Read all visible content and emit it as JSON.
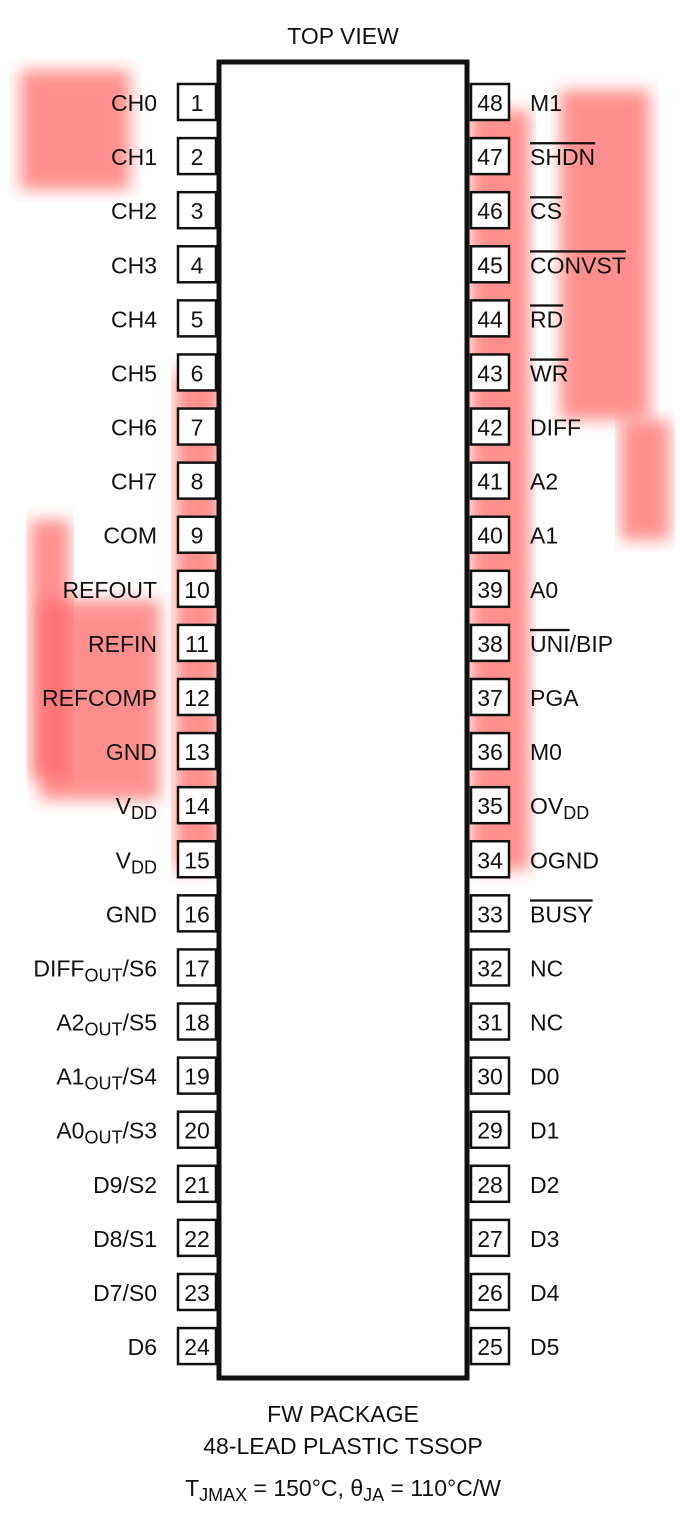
{
  "title": "TOP VIEW",
  "left_pins": [
    {
      "number": 1,
      "name": [
        {
          "text": "CH0"
        }
      ]
    },
    {
      "number": 2,
      "name": [
        {
          "text": "CH1"
        }
      ]
    },
    {
      "number": 3,
      "name": [
        {
          "text": "CH2"
        }
      ]
    },
    {
      "number": 4,
      "name": [
        {
          "text": "CH3"
        }
      ]
    },
    {
      "number": 5,
      "name": [
        {
          "text": "CH4"
        }
      ]
    },
    {
      "number": 6,
      "name": [
        {
          "text": "CH5"
        }
      ]
    },
    {
      "number": 7,
      "name": [
        {
          "text": "CH6"
        }
      ]
    },
    {
      "number": 8,
      "name": [
        {
          "text": "CH7"
        }
      ]
    },
    {
      "number": 9,
      "name": [
        {
          "text": "COM"
        }
      ]
    },
    {
      "number": 10,
      "name": [
        {
          "text": "REFOUT"
        }
      ]
    },
    {
      "number": 11,
      "name": [
        {
          "text": "REFIN"
        }
      ]
    },
    {
      "number": 12,
      "name": [
        {
          "text": "REFCOMP"
        }
      ]
    },
    {
      "number": 13,
      "name": [
        {
          "text": "GND"
        }
      ]
    },
    {
      "number": 14,
      "name": [
        {
          "text": "V"
        },
        {
          "text": "DD",
          "sub": true
        }
      ]
    },
    {
      "number": 15,
      "name": [
        {
          "text": "V"
        },
        {
          "text": "DD",
          "sub": true
        }
      ]
    },
    {
      "number": 16,
      "name": [
        {
          "text": "GND"
        }
      ]
    },
    {
      "number": 17,
      "name": [
        {
          "text": "DIFF"
        },
        {
          "text": "OUT",
          "sub": true
        },
        {
          "text": "/S6"
        }
      ]
    },
    {
      "number": 18,
      "name": [
        {
          "text": "A2"
        },
        {
          "text": "OUT",
          "sub": true
        },
        {
          "text": "/S5"
        }
      ]
    },
    {
      "number": 19,
      "name": [
        {
          "text": "A1"
        },
        {
          "text": "OUT",
          "sub": true
        },
        {
          "text": "/S4"
        }
      ]
    },
    {
      "number": 20,
      "name": [
        {
          "text": "A0"
        },
        {
          "text": "OUT",
          "sub": true
        },
        {
          "text": "/S3"
        }
      ]
    },
    {
      "number": 21,
      "name": [
        {
          "text": "D9/S2"
        }
      ]
    },
    {
      "number": 22,
      "name": [
        {
          "text": "D8/S1"
        }
      ]
    },
    {
      "number": 23,
      "name": [
        {
          "text": "D7/S0"
        }
      ]
    },
    {
      "number": 24,
      "name": [
        {
          "text": "D6"
        }
      ]
    }
  ],
  "right_pins": [
    {
      "number": 48,
      "name": [
        {
          "text": "M1"
        }
      ]
    },
    {
      "number": 47,
      "name": [
        {
          "text": "SHDN",
          "over": true
        }
      ]
    },
    {
      "number": 46,
      "name": [
        {
          "text": "CS",
          "over": true
        }
      ]
    },
    {
      "number": 45,
      "name": [
        {
          "text": "CONVST",
          "over": true
        }
      ]
    },
    {
      "number": 44,
      "name": [
        {
          "text": "RD",
          "over": true
        }
      ]
    },
    {
      "number": 43,
      "name": [
        {
          "text": "WR",
          "over": true
        }
      ]
    },
    {
      "number": 42,
      "name": [
        {
          "text": "DIFF"
        }
      ]
    },
    {
      "number": 41,
      "name": [
        {
          "text": "A2"
        }
      ]
    },
    {
      "number": 40,
      "name": [
        {
          "text": "A1"
        }
      ]
    },
    {
      "number": 39,
      "name": [
        {
          "text": "A0"
        }
      ]
    },
    {
      "number": 38,
      "name": [
        {
          "text": "UNI",
          "over": true
        },
        {
          "text": "/BIP"
        }
      ]
    },
    {
      "number": 37,
      "name": [
        {
          "text": "PGA"
        }
      ]
    },
    {
      "number": 36,
      "name": [
        {
          "text": "M0"
        }
      ]
    },
    {
      "number": 35,
      "name": [
        {
          "text": "OV"
        },
        {
          "text": "DD",
          "sub": true
        }
      ]
    },
    {
      "number": 34,
      "name": [
        {
          "text": "OGND"
        }
      ]
    },
    {
      "number": 33,
      "name": [
        {
          "text": "BUSY",
          "over": true
        }
      ]
    },
    {
      "number": 32,
      "name": [
        {
          "text": "NC"
        }
      ]
    },
    {
      "number": 31,
      "name": [
        {
          "text": "NC"
        }
      ]
    },
    {
      "number": 30,
      "name": [
        {
          "text": "D0"
        }
      ]
    },
    {
      "number": 29,
      "name": [
        {
          "text": "D1"
        }
      ]
    },
    {
      "number": 28,
      "name": [
        {
          "text": "D2"
        }
      ]
    },
    {
      "number": 27,
      "name": [
        {
          "text": "D3"
        }
      ]
    },
    {
      "number": 26,
      "name": [
        {
          "text": "D4"
        }
      ]
    },
    {
      "number": 25,
      "name": [
        {
          "text": "D5"
        }
      ]
    }
  ],
  "package": "FW PACKAGE",
  "package_type": "48-LEAD PLASTIC TSSOP",
  "thermal": [
    {
      "text": "T"
    },
    {
      "text": "JMAX",
      "sub": true
    },
    {
      "text": " = 150°C, "
    },
    {
      "text": "θ"
    },
    {
      "text": "JA",
      "sub": true
    },
    {
      "text": " = 110°C/W"
    }
  ]
}
